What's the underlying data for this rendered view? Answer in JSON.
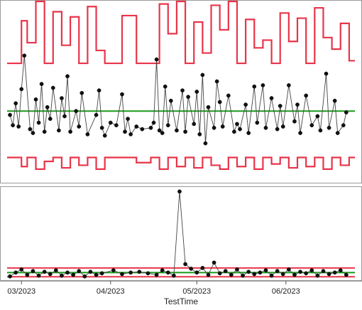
{
  "chart_data": [
    {
      "type": "line",
      "panel": "upper",
      "xlabel": "TestTime",
      "x_range": [
        "2023-02-24",
        "2023-06-25"
      ],
      "grid": false,
      "series": [
        {
          "kind": "data",
          "color": "#000000",
          "x": [
            "2023-02-25",
            "2023-02-26",
            "2023-02-27",
            "2023-02-28",
            "2023-03-01",
            "2023-03-02",
            "2023-03-04",
            "2023-03-05",
            "2023-03-06",
            "2023-03-07",
            "2023-03-08",
            "2023-03-09",
            "2023-03-10",
            "2023-03-11",
            "2023-03-12",
            "2023-03-14",
            "2023-03-15",
            "2023-03-16",
            "2023-03-17",
            "2023-03-18",
            "2023-03-20",
            "2023-03-21",
            "2023-03-22",
            "2023-03-24",
            "2023-03-27",
            "2023-03-28",
            "2023-03-29",
            "2023-03-30",
            "2023-04-01",
            "2023-04-03",
            "2023-04-05",
            "2023-04-06",
            "2023-04-07",
            "2023-04-08",
            "2023-04-10",
            "2023-04-12",
            "2023-04-15",
            "2023-04-16",
            "2023-04-17",
            "2023-04-18",
            "2023-04-19",
            "2023-04-20",
            "2023-04-21",
            "2023-04-22",
            "2023-04-24",
            "2023-04-26",
            "2023-04-27",
            "2023-04-28",
            "2023-04-30",
            "2023-05-01",
            "2023-05-02",
            "2023-05-03",
            "2023-05-04",
            "2023-05-05",
            "2023-05-07",
            "2023-05-08",
            "2023-05-09",
            "2023-05-10",
            "2023-05-12",
            "2023-05-14",
            "2023-05-15",
            "2023-05-16",
            "2023-05-18",
            "2023-05-19",
            "2023-05-21",
            "2023-05-22",
            "2023-05-24",
            "2023-05-25",
            "2023-05-27",
            "2023-05-29",
            "2023-05-30",
            "2023-05-31",
            "2023-06-02",
            "2023-06-04",
            "2023-06-05",
            "2023-06-06",
            "2023-06-08",
            "2023-06-10",
            "2023-06-12",
            "2023-06-13",
            "2023-06-15",
            "2023-06-16",
            "2023-06-18",
            "2023-06-19",
            "2023-06-21",
            "2023-06-22"
          ],
          "y": [
            5.2,
            4.4,
            6.1,
            4.3,
            7.2,
            9.8,
            4.1,
            3.8,
            6.4,
            4.6,
            7.6,
            3.9,
            5.8,
            4.9,
            7.3,
            4.0,
            6.5,
            5.1,
            8.2,
            3.9,
            5.5,
            4.3,
            6.9,
            3.7,
            5.2,
            7.1,
            4.2,
            3.6,
            4.6,
            4.4,
            6.8,
            3.9,
            4.9,
            3.7,
            4.3,
            4.1,
            4.2,
            4.6,
            9.5,
            4.0,
            3.8,
            7.4,
            4.4,
            6.3,
            4.0,
            7.1,
            3.9,
            6.6,
            4.5,
            7.0,
            3.7,
            8.3,
            3.0,
            5.8,
            4.2,
            7.8,
            6.2,
            4.3,
            6.7,
            3.9,
            4.5,
            4.1,
            6.0,
            3.8,
            7.4,
            4.6,
            7.5,
            4.2,
            6.5,
            4.1,
            5.9,
            4.3,
            7.5,
            4.7,
            6.0,
            3.8,
            6.7,
            4.4,
            5.1,
            4.0,
            8.4,
            4.2,
            6.3,
            3.8,
            4.4,
            5.4
          ]
        },
        {
          "kind": "center line",
          "color": "#1a9a1a",
          "y": [
            5.5
          ]
        },
        {
          "kind": "upper limit",
          "color": "#e8344a",
          "x": [
            "2023-02-25",
            "2023-03-01",
            "2023-03-03",
            "2023-03-06",
            "2023-03-09",
            "2023-03-12",
            "2023-03-15",
            "2023-03-18",
            "2023-03-21",
            "2023-03-24",
            "2023-03-27",
            "2023-03-30",
            "2023-04-05",
            "2023-04-10",
            "2023-04-15",
            "2023-04-18",
            "2023-04-21",
            "2023-04-24",
            "2023-04-27",
            "2023-04-30",
            "2023-05-03",
            "2023-05-06",
            "2023-05-09",
            "2023-05-12",
            "2023-05-15",
            "2023-05-18",
            "2023-05-21",
            "2023-05-24",
            "2023-05-27",
            "2023-05-30",
            "2023-06-02",
            "2023-06-05",
            "2023-06-08",
            "2023-06-11",
            "2023-06-14",
            "2023-06-17",
            "2023-06-20",
            "2023-06-23"
          ],
          "y": [
            9.2,
            12.5,
            10.8,
            14.0,
            9.2,
            13.2,
            10.6,
            12.8,
            9.2,
            13.6,
            10.2,
            9.2,
            12.9,
            9.2,
            9.2,
            13.8,
            11.5,
            14.0,
            9.2,
            12.4,
            10.0,
            13.7,
            11.8,
            14.0,
            9.2,
            12.6,
            10.4,
            11.0,
            9.2,
            13.1,
            10.9,
            12.7,
            9.2,
            13.5,
            11.2,
            10.3,
            12.3,
            9.4
          ]
        },
        {
          "kind": "lower limit",
          "color": "#e8344a",
          "x": [
            "2023-02-25",
            "2023-03-01",
            "2023-03-03",
            "2023-03-06",
            "2023-03-09",
            "2023-03-12",
            "2023-03-15",
            "2023-03-18",
            "2023-03-21",
            "2023-03-24",
            "2023-03-27",
            "2023-03-30",
            "2023-04-05",
            "2023-04-10",
            "2023-04-15",
            "2023-04-18",
            "2023-04-21",
            "2023-04-24",
            "2023-04-27",
            "2023-04-30",
            "2023-05-03",
            "2023-05-06",
            "2023-05-09",
            "2023-05-12",
            "2023-05-15",
            "2023-05-18",
            "2023-05-21",
            "2023-05-24",
            "2023-05-27",
            "2023-05-30",
            "2023-06-02",
            "2023-06-05",
            "2023-06-08",
            "2023-06-11",
            "2023-06-14",
            "2023-06-17",
            "2023-06-20",
            "2023-06-23"
          ],
          "y": [
            1.9,
            1.2,
            1.9,
            1.0,
            1.6,
            1.9,
            1.1,
            1.9,
            1.3,
            1.9,
            1.0,
            1.9,
            1.9,
            1.5,
            1.9,
            1.0,
            1.9,
            1.2,
            1.9,
            1.1,
            1.9,
            1.3,
            1.0,
            1.9,
            1.2,
            1.9,
            1.0,
            1.9,
            1.4,
            1.9,
            1.1,
            1.9,
            1.2,
            1.9,
            1.0,
            1.9,
            1.3,
            1.9
          ]
        }
      ],
      "ylim": [
        0,
        14
      ]
    },
    {
      "type": "line",
      "panel": "lower",
      "xlabel": "TestTime",
      "x_range": [
        "2023-02-24",
        "2023-06-25"
      ],
      "x_ticks": [
        "03/2023",
        "04/2023",
        "05/2023",
        "06/2023"
      ],
      "x_tick_dates": [
        "2023-03-01",
        "2023-04-01",
        "2023-05-01",
        "2023-06-01"
      ],
      "grid": false,
      "series": [
        {
          "kind": "data",
          "color": "#000000",
          "x": [
            "2023-02-25",
            "2023-02-27",
            "2023-03-01",
            "2023-03-03",
            "2023-03-05",
            "2023-03-07",
            "2023-03-09",
            "2023-03-11",
            "2023-03-13",
            "2023-03-15",
            "2023-03-17",
            "2023-03-19",
            "2023-03-21",
            "2023-03-23",
            "2023-03-25",
            "2023-03-27",
            "2023-03-29",
            "2023-04-02",
            "2023-04-05",
            "2023-04-08",
            "2023-04-11",
            "2023-04-14",
            "2023-04-17",
            "2023-04-19",
            "2023-04-21",
            "2023-04-23",
            "2023-04-25",
            "2023-04-27",
            "2023-04-29",
            "2023-05-01",
            "2023-05-03",
            "2023-05-05",
            "2023-05-07",
            "2023-05-09",
            "2023-05-11",
            "2023-05-13",
            "2023-05-15",
            "2023-05-17",
            "2023-05-19",
            "2023-05-21",
            "2023-05-23",
            "2023-05-25",
            "2023-05-27",
            "2023-05-29",
            "2023-05-31",
            "2023-06-02",
            "2023-06-04",
            "2023-06-06",
            "2023-06-08",
            "2023-06-10",
            "2023-06-12",
            "2023-06-14",
            "2023-06-16",
            "2023-06-18",
            "2023-06-20",
            "2023-06-22"
          ],
          "y": [
            0.4,
            0.9,
            1.3,
            0.6,
            1.1,
            0.5,
            1.0,
            0.7,
            1.2,
            0.5,
            0.9,
            0.6,
            1.1,
            0.4,
            1.0,
            0.6,
            0.8,
            1.2,
            0.7,
            0.9,
            1.0,
            0.8,
            0.6,
            1.2,
            0.9,
            0.5,
            11.5,
            2.0,
            1.4,
            0.9,
            1.5,
            0.6,
            2.2,
            0.8,
            1.1,
            0.6,
            1.3,
            0.5,
            1.0,
            0.7,
            0.9,
            1.2,
            0.5,
            1.1,
            0.7,
            1.3,
            0.6,
            1.0,
            0.8,
            1.2,
            0.5,
            1.1,
            0.7,
            0.9,
            1.2,
            0.6
          ]
        },
        {
          "kind": "center line",
          "color": "#1a9a1a",
          "y": [
            0.9
          ]
        },
        {
          "kind": "upper limit",
          "color": "#e8344a",
          "y": [
            1.5
          ]
        },
        {
          "kind": "lower limit",
          "color": "#e8344a",
          "y": [
            0.35
          ]
        }
      ],
      "ylim": [
        0,
        12
      ]
    }
  ]
}
